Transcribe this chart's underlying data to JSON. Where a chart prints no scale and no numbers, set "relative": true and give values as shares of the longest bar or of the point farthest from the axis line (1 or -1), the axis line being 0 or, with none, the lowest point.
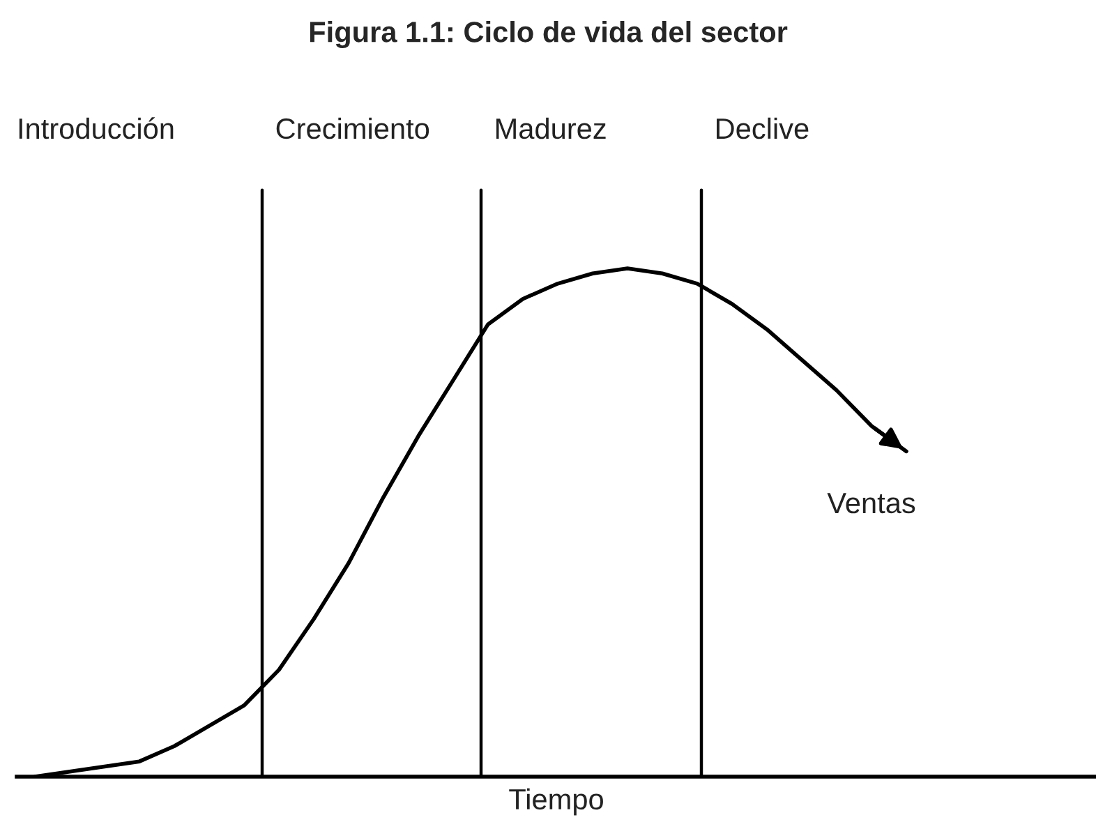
{
  "chart_data": {
    "type": "line",
    "title": "Figura 1.1: Ciclo de vida del sector",
    "xlabel": "Tiempo",
    "relative": true,
    "categories": [
      null,
      null,
      null,
      null,
      null,
      null,
      null,
      null,
      null,
      null,
      null,
      null,
      null,
      null,
      null,
      null,
      null,
      null,
      null,
      null,
      null,
      null,
      null,
      null,
      null,
      null
    ],
    "series": [
      {
        "name": "Ventas",
        "color": "#000000",
        "values": [
          0,
          0.01,
          0.02,
          0.03,
          0.06,
          0.1,
          0.14,
          0.21,
          0.31,
          0.42,
          0.55,
          0.67,
          0.78,
          0.89,
          0.94,
          0.97,
          0.99,
          1.0,
          0.99,
          0.97,
          0.93,
          0.88,
          0.82,
          0.76,
          0.69,
          0.64
        ]
      }
    ],
    "annotations": [
      "Introducción",
      "Crecimiento",
      "Madurez",
      "Declive"
    ],
    "marker": "none",
    "line_style": "solid"
  }
}
